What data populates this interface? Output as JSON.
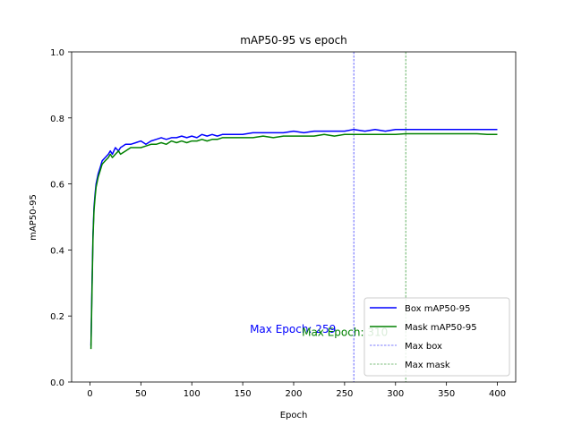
{
  "chart_data": {
    "type": "line",
    "title": "mAP50-95 vs epoch",
    "xlabel": "Epoch",
    "ylabel": "mAP50-95",
    "xlim": [
      -18,
      418
    ],
    "ylim": [
      0,
      1.0
    ],
    "xticks": [
      "0",
      "50",
      "100",
      "150",
      "200",
      "250",
      "300",
      "350",
      "400"
    ],
    "yticks": [
      "0.0",
      "0.2",
      "0.4",
      "0.6",
      "0.8",
      "1.0"
    ],
    "grid": false,
    "legend_position": "lower-right",
    "series": [
      {
        "name": "Box mAP50-95",
        "color": "#0000ff",
        "x": [
          1,
          2,
          3,
          4,
          5,
          6,
          8,
          10,
          12,
          15,
          18,
          20,
          22,
          25,
          28,
          30,
          35,
          40,
          45,
          50,
          55,
          60,
          65,
          70,
          75,
          80,
          85,
          90,
          95,
          100,
          105,
          110,
          115,
          120,
          125,
          130,
          140,
          150,
          160,
          170,
          180,
          190,
          200,
          210,
          220,
          230,
          240,
          250,
          259,
          270,
          280,
          290,
          300,
          310,
          320,
          330,
          340,
          350,
          360,
          370,
          380,
          390,
          400
        ],
        "y": [
          0.11,
          0.3,
          0.45,
          0.53,
          0.57,
          0.6,
          0.63,
          0.65,
          0.67,
          0.68,
          0.69,
          0.7,
          0.69,
          0.71,
          0.7,
          0.71,
          0.72,
          0.72,
          0.725,
          0.73,
          0.72,
          0.73,
          0.735,
          0.74,
          0.735,
          0.74,
          0.74,
          0.745,
          0.74,
          0.745,
          0.74,
          0.75,
          0.745,
          0.75,
          0.745,
          0.75,
          0.75,
          0.75,
          0.755,
          0.755,
          0.755,
          0.755,
          0.76,
          0.755,
          0.76,
          0.76,
          0.76,
          0.76,
          0.765,
          0.76,
          0.765,
          0.76,
          0.765,
          0.765,
          0.765,
          0.765,
          0.765,
          0.765,
          0.765,
          0.765,
          0.765,
          0.765,
          0.765
        ]
      },
      {
        "name": "Mask mAP50-95",
        "color": "#008000",
        "x": [
          1,
          2,
          3,
          4,
          5,
          6,
          8,
          10,
          12,
          15,
          18,
          20,
          22,
          25,
          28,
          30,
          35,
          40,
          45,
          50,
          55,
          60,
          65,
          70,
          75,
          80,
          85,
          90,
          95,
          100,
          105,
          110,
          115,
          120,
          125,
          130,
          140,
          150,
          160,
          170,
          180,
          190,
          200,
          210,
          220,
          230,
          240,
          250,
          260,
          270,
          280,
          290,
          300,
          310,
          320,
          330,
          340,
          350,
          360,
          370,
          380,
          390,
          400
        ],
        "y": [
          0.1,
          0.28,
          0.44,
          0.52,
          0.56,
          0.59,
          0.62,
          0.64,
          0.66,
          0.67,
          0.68,
          0.69,
          0.68,
          0.69,
          0.7,
          0.69,
          0.7,
          0.71,
          0.71,
          0.71,
          0.715,
          0.72,
          0.72,
          0.725,
          0.72,
          0.73,
          0.725,
          0.73,
          0.725,
          0.73,
          0.73,
          0.735,
          0.73,
          0.735,
          0.735,
          0.74,
          0.74,
          0.74,
          0.74,
          0.745,
          0.74,
          0.745,
          0.745,
          0.745,
          0.745,
          0.75,
          0.745,
          0.75,
          0.75,
          0.75,
          0.75,
          0.75,
          0.75,
          0.752,
          0.752,
          0.752,
          0.752,
          0.752,
          0.752,
          0.752,
          0.752,
          0.75,
          0.75
        ]
      }
    ],
    "vlines": [
      {
        "name": "Max box",
        "x": 259,
        "color": "#0000ff"
      },
      {
        "name": "Max mask",
        "x": 310,
        "color": "#008000"
      }
    ],
    "annotations": [
      {
        "text": "Max Epoch: 259",
        "x": 157,
        "y": 0.16,
        "color": "#0000ff"
      },
      {
        "text": "Max Epoch: 310",
        "x": 208,
        "y": 0.15,
        "color": "#008000"
      }
    ]
  }
}
